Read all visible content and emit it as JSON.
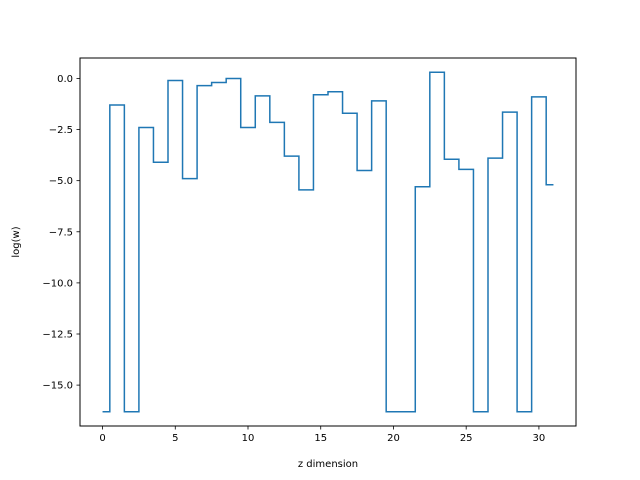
{
  "chart_data": {
    "type": "line",
    "drawstyle": "steps-mid",
    "xlabel": "z dimension",
    "ylabel": "log(w)",
    "xlim": [
      -1.55,
      32.55
    ],
    "ylim": [
      -17.0,
      1.0
    ],
    "xticks": [
      0,
      5,
      10,
      15,
      20,
      25,
      30
    ],
    "xtick_labels": [
      "0",
      "5",
      "10",
      "15",
      "20",
      "25",
      "30"
    ],
    "yticks": [
      0.0,
      -2.5,
      -5.0,
      -7.5,
      -10.0,
      -12.5,
      -15.0
    ],
    "ytick_labels": [
      "0.0",
      "−2.5",
      "−5.0",
      "−7.5",
      "−10.0",
      "−12.5",
      "−15.0"
    ],
    "grid": false,
    "series": [
      {
        "color": "#1f77b4",
        "x": [
          0,
          1,
          2,
          3,
          4,
          5,
          6,
          7,
          8,
          9,
          10,
          11,
          12,
          13,
          14,
          15,
          16,
          17,
          18,
          19,
          20,
          21,
          22,
          23,
          24,
          25,
          26,
          27,
          28,
          29,
          30,
          31
        ],
        "y": [
          -16.3,
          -1.3,
          -16.3,
          -2.4,
          -4.1,
          -0.1,
          -4.9,
          -0.35,
          -0.2,
          0.0,
          -2.4,
          -0.85,
          -2.15,
          -3.8,
          -5.45,
          -0.8,
          -0.65,
          -1.7,
          -4.5,
          -1.1,
          -16.3,
          -16.3,
          -5.3,
          0.3,
          -3.95,
          -4.45,
          -16.3,
          -3.9,
          -1.65,
          -16.3,
          -0.9,
          -5.2
        ]
      }
    ]
  }
}
